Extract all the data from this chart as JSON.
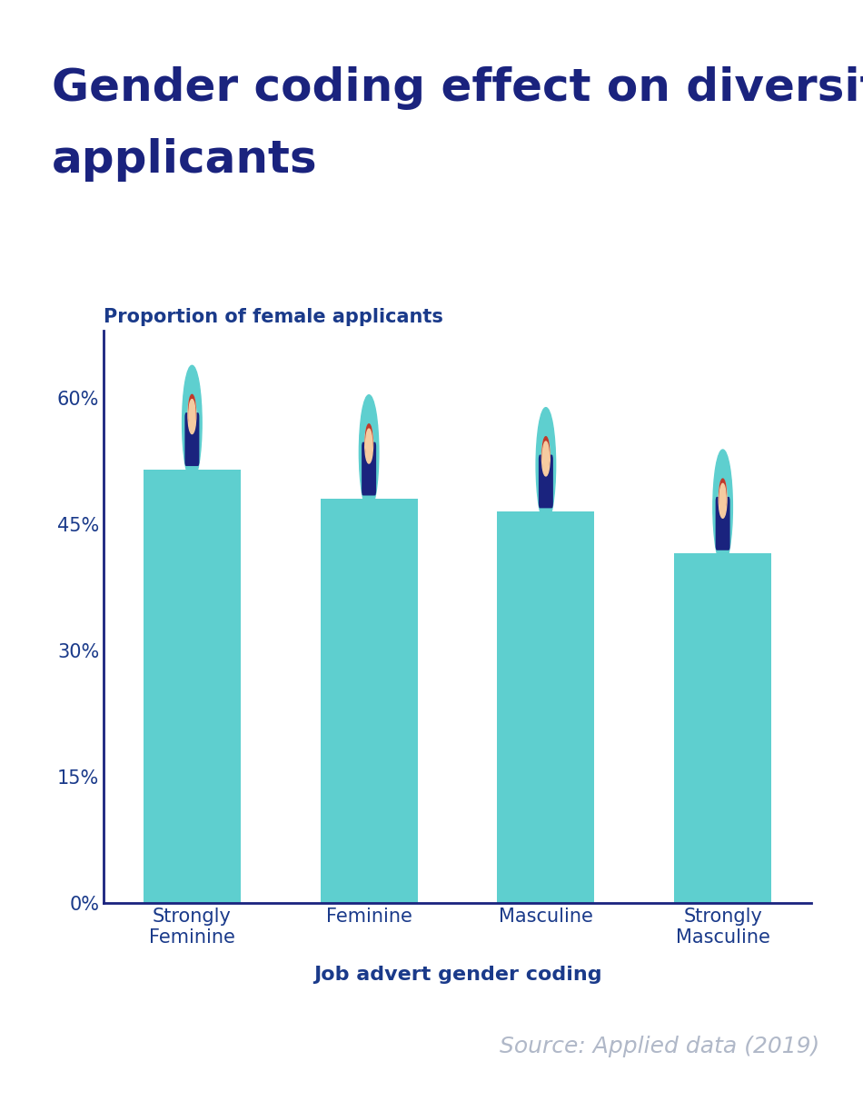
{
  "title_line1": "Gender coding effect on diversity of",
  "title_line2": "applicants",
  "title_color": "#1a237e",
  "title_fontsize": 36,
  "ylabel": "Proportion of female applicants",
  "ylabel_color": "#1a3a8a",
  "ylabel_fontsize": 15,
  "xlabel": "Job advert gender coding",
  "xlabel_color": "#1a3a8a",
  "xlabel_fontsize": 16,
  "categories": [
    "Strongly\nFeminine",
    "Feminine",
    "Masculine",
    "Strongly\nMasculine"
  ],
  "values": [
    0.515,
    0.48,
    0.465,
    0.415
  ],
  "bar_color": "#5ecfcf",
  "yticks": [
    0,
    0.15,
    0.3,
    0.45,
    0.6
  ],
  "ytick_labels": [
    "0%",
    "15%",
    "30%",
    "45%",
    "60%"
  ],
  "ylim": [
    0,
    0.68
  ],
  "axis_color": "#1a237e",
  "tick_color": "#1a3a8a",
  "source_text": "Source: Applied data (2019)",
  "source_color": "#b0b8c8",
  "source_fontsize": 18,
  "background_color": "#ffffff",
  "icon_circle_color": "#5ecfcf",
  "icon_body_color": "#1a237e",
  "icon_skin_color": "#f5cba0",
  "icon_hair_color": "#c0392b"
}
